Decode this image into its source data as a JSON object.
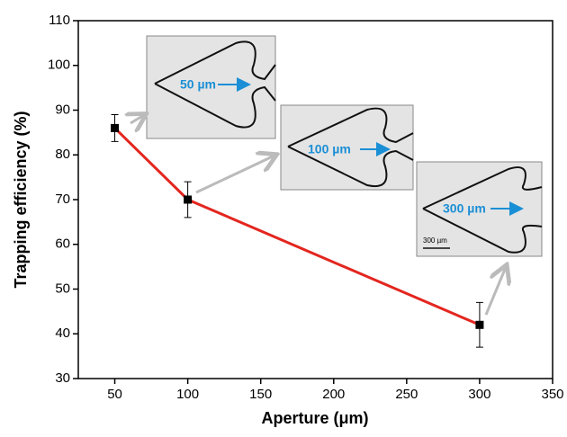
{
  "chart_data": {
    "type": "line",
    "xlabel": "Aperture (μm)",
    "ylabel": "Trapping efficiency (%)",
    "x": [
      50,
      100,
      300
    ],
    "series": [
      {
        "name": "Trapping efficiency",
        "color": "#e3261f",
        "marker_color": "#000000",
        "values": [
          86,
          70,
          42
        ],
        "errors": [
          3,
          4,
          5
        ]
      }
    ],
    "xlim": [
      25,
      350
    ],
    "xticks": [
      50,
      100,
      150,
      200,
      250,
      300,
      350
    ],
    "ylim": [
      30,
      110
    ],
    "yticks": [
      30,
      40,
      50,
      60,
      70,
      80,
      90,
      100,
      110
    ],
    "annotations": [
      "50 µm",
      "100 µm",
      "300 µm"
    ],
    "scale_bar": "300 µm"
  }
}
